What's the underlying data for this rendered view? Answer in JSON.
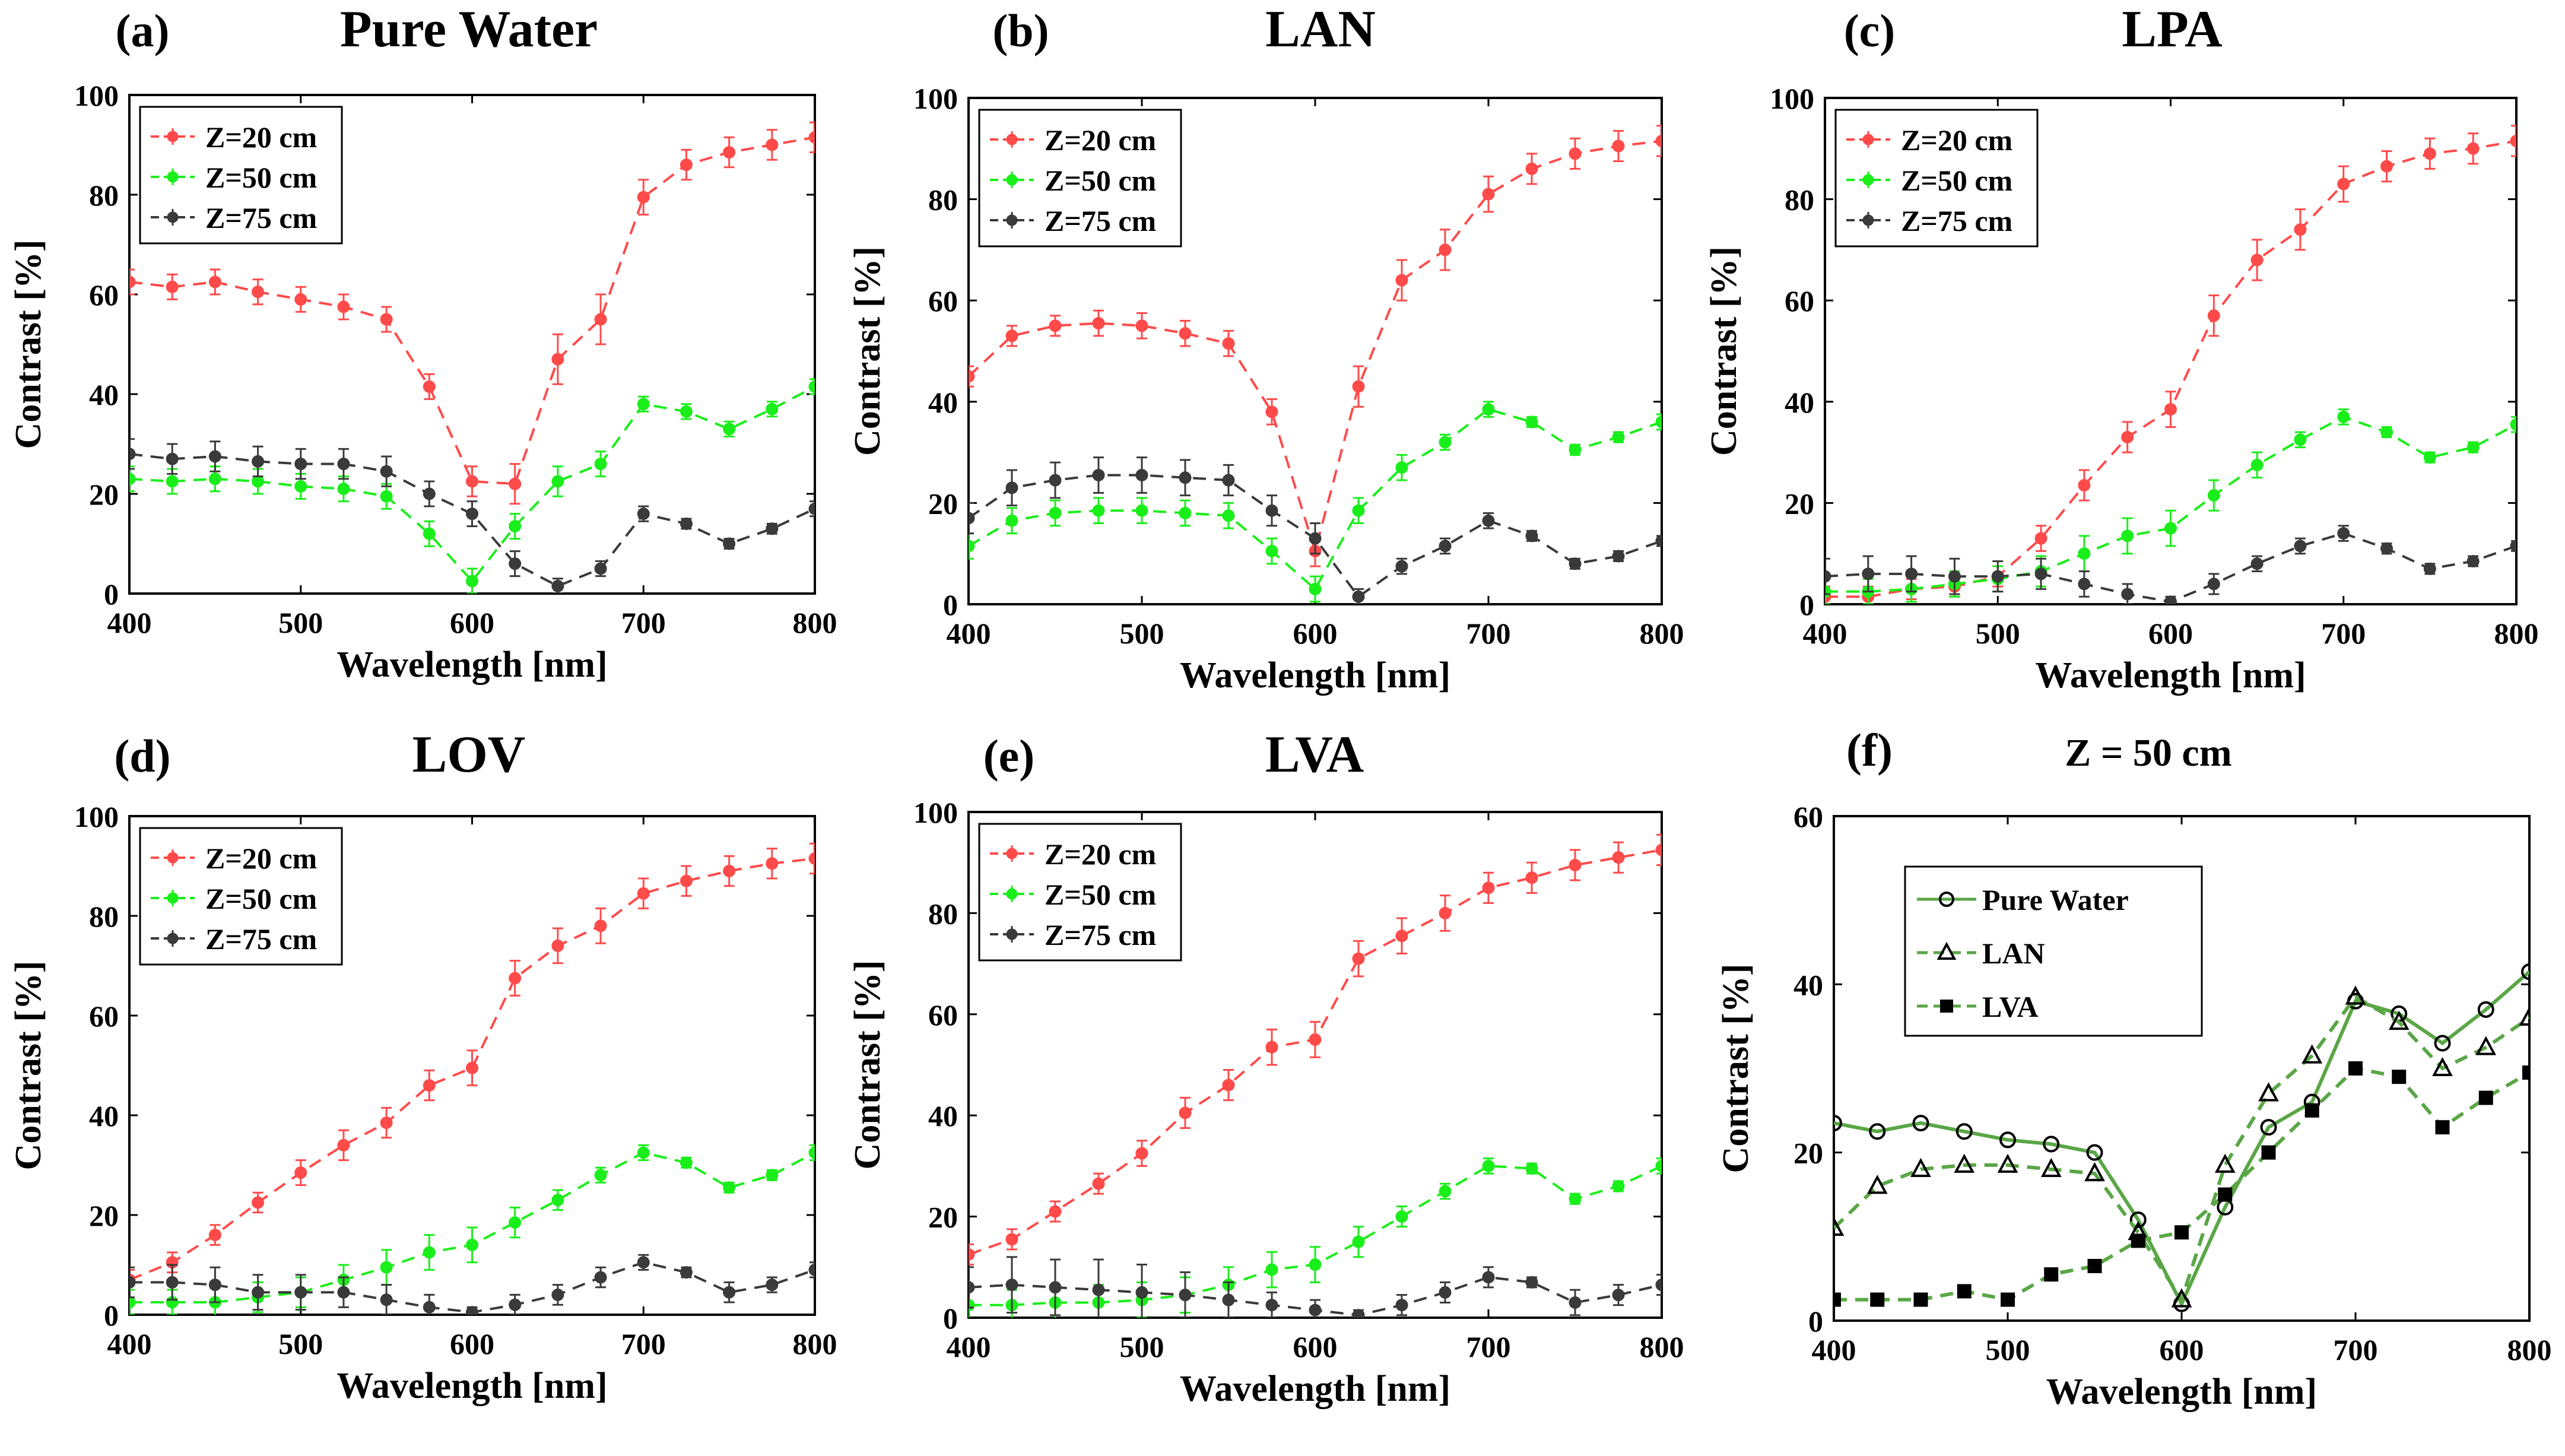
{
  "figure": {
    "name": "Contrast vs wavelength panels"
  },
  "colors": {
    "z20": "#ff4a4a",
    "z50": "#1aee1a",
    "z75": "#3a3a3a",
    "f_line": "#5aa646"
  },
  "chart_data": [
    {
      "panel": "(a)",
      "title": "Pure Water",
      "type": "line",
      "xlabel": "Wavelength [nm]",
      "ylabel": "Contrast [%]",
      "xlim": [
        400,
        800
      ],
      "ylim": [
        0,
        100
      ],
      "xticks": [
        400,
        500,
        600,
        700,
        800
      ],
      "yticks": [
        0,
        20,
        40,
        60,
        80,
        100
      ],
      "x": [
        400,
        425,
        450,
        475,
        500,
        525,
        550,
        575,
        600,
        625,
        650,
        675,
        700,
        725,
        750,
        775,
        800
      ],
      "series": [
        {
          "name": "Z=20 cm",
          "color": "#ff4a4a",
          "values": [
            62.5,
            61.5,
            62.5,
            60.5,
            59,
            57.5,
            55,
            41.5,
            22.5,
            22,
            47,
            55,
            79.5,
            86,
            88.5,
            90,
            91.5
          ],
          "errors": [
            2.5,
            2.5,
            2.5,
            2.5,
            2.5,
            2.5,
            2.5,
            2.5,
            3,
            4,
            5,
            5,
            3.5,
            3,
            3,
            3,
            3
          ]
        },
        {
          "name": "Z=50 cm",
          "color": "#1aee1a",
          "values": [
            23,
            22.5,
            23,
            22.5,
            21.5,
            21,
            19.5,
            12,
            2.5,
            13.5,
            22.5,
            26,
            38,
            36.5,
            33,
            37,
            41.5
          ],
          "errors": [
            2.5,
            2.5,
            2.5,
            2.5,
            2.5,
            2.5,
            2.5,
            2.5,
            2.5,
            2.5,
            3,
            2.5,
            1.5,
            1.5,
            1.5,
            1.5,
            1.5
          ]
        },
        {
          "name": "Z=75 cm",
          "color": "#3a3a3a",
          "values": [
            28,
            27,
            27.5,
            26.5,
            26,
            26,
            24.5,
            20,
            16,
            6,
            1.5,
            5,
            16,
            14,
            10,
            13,
            17
          ],
          "errors": [
            3,
            3,
            3,
            3,
            3,
            3,
            3,
            2.5,
            2.5,
            2.5,
            1.5,
            1.5,
            1.5,
            1,
            1,
            1,
            1.5
          ]
        }
      ],
      "legend": [
        "Z=20 cm",
        "Z=50 cm",
        "Z=75 cm"
      ],
      "legend_loc": "top-left"
    },
    {
      "panel": "(b)",
      "title": "LAN",
      "type": "line",
      "xlabel": "Wavelength [nm]",
      "ylabel": "Contrast [%]",
      "xlim": [
        400,
        800
      ],
      "ylim": [
        0,
        100
      ],
      "xticks": [
        400,
        500,
        600,
        700,
        800
      ],
      "yticks": [
        0,
        20,
        40,
        60,
        80,
        100
      ],
      "x": [
        400,
        425,
        450,
        475,
        500,
        525,
        550,
        575,
        600,
        625,
        650,
        675,
        700,
        725,
        750,
        775,
        800
      ],
      "series": [
        {
          "name": "Z=20 cm",
          "color": "#ff4a4a",
          "values": [
            45,
            53,
            55,
            55.5,
            55,
            53.5,
            51.5,
            38,
            10.5,
            43,
            64,
            70,
            81,
            86,
            89,
            90.5,
            91.5
          ],
          "errors": [
            2,
            2,
            2,
            2.5,
            2.5,
            2.5,
            2.5,
            2.5,
            3,
            4,
            4,
            4,
            3.5,
            3,
            3,
            3,
            3
          ]
        },
        {
          "name": "Z=50 cm",
          "color": "#1aee1a",
          "values": [
            11.5,
            16.5,
            18,
            18.5,
            18.5,
            18,
            17.5,
            10.5,
            3,
            18.5,
            27,
            32,
            38.5,
            36,
            30.5,
            33,
            36
          ],
          "errors": [
            2.5,
            2.5,
            2.5,
            2.5,
            2.5,
            2.5,
            2.5,
            2.5,
            2.5,
            2.5,
            2.5,
            1.5,
            1.5,
            1,
            1,
            1,
            1.5
          ]
        },
        {
          "name": "Z=75 cm",
          "color": "#3a3a3a",
          "values": [
            17,
            23,
            24.5,
            25.5,
            25.5,
            25,
            24.5,
            18.5,
            13,
            1.5,
            7.5,
            11.5,
            16.5,
            13.5,
            8,
            9.5,
            12.5
          ],
          "errors": [
            3,
            3.5,
            3.5,
            3.5,
            3.5,
            3.5,
            3,
            3,
            3,
            1.5,
            1.5,
            1.5,
            1.5,
            1,
            1,
            1,
            1
          ]
        }
      ],
      "legend": [
        "Z=20 cm",
        "Z=50 cm",
        "Z=75 cm"
      ],
      "legend_loc": "top-left"
    },
    {
      "panel": "(c)",
      "title": "LPA",
      "type": "line",
      "xlabel": "Wavelength [nm]",
      "ylabel": "Contrast [%]",
      "xlim": [
        400,
        800
      ],
      "ylim": [
        0,
        100
      ],
      "xticks": [
        400,
        500,
        600,
        700,
        800
      ],
      "yticks": [
        0,
        20,
        40,
        60,
        80,
        100
      ],
      "x": [
        400,
        425,
        450,
        475,
        500,
        525,
        550,
        575,
        600,
        625,
        650,
        675,
        700,
        725,
        750,
        775,
        800
      ],
      "series": [
        {
          "name": "Z=20 cm",
          "color": "#ff4a4a",
          "values": [
            1.5,
            1.5,
            3,
            3.5,
            5.5,
            13,
            23.5,
            33,
            38.5,
            57,
            68,
            74,
            83,
            86.5,
            89,
            90,
            91.5
          ],
          "errors": [
            2,
            2,
            2,
            2,
            2,
            2.5,
            3,
            3,
            3.5,
            4,
            4,
            4,
            3.5,
            3,
            3,
            3,
            3
          ]
        },
        {
          "name": "Z=50 cm",
          "color": "#1aee1a",
          "values": [
            2.5,
            2.5,
            3,
            4,
            5,
            6.5,
            10,
            13.5,
            15,
            21.5,
            27.5,
            32.5,
            37,
            34,
            29,
            31,
            35.5
          ],
          "errors": [
            2.5,
            2.5,
            2.5,
            2.5,
            2.5,
            3,
            3.5,
            3.5,
            3.5,
            3,
            2.5,
            1.5,
            1.5,
            1,
            1,
            1,
            1.5
          ]
        },
        {
          "name": "Z=75 cm",
          "color": "#3a3a3a",
          "values": [
            5.5,
            6,
            6,
            5.5,
            5.5,
            6,
            4,
            2,
            0.5,
            4,
            8,
            11.5,
            14,
            11,
            7,
            8.5,
            11.5
          ],
          "errors": [
            3.5,
            3.5,
            3.5,
            3.5,
            3,
            3,
            2.5,
            2,
            1,
            2,
            1.5,
            1.5,
            1.5,
            1,
            1,
            1,
            1
          ]
        }
      ],
      "legend": [
        "Z=20 cm",
        "Z=50 cm",
        "Z=75 cm"
      ],
      "legend_loc": "top-left"
    },
    {
      "panel": "(d)",
      "title": "LOV",
      "type": "line",
      "xlabel": "Wavelength [nm]",
      "ylabel": "Contrast [%]",
      "xlim": [
        400,
        800
      ],
      "ylim": [
        0,
        100
      ],
      "xticks": [
        400,
        500,
        600,
        700,
        800
      ],
      "yticks": [
        0,
        20,
        40,
        60,
        80,
        100
      ],
      "x": [
        400,
        425,
        450,
        475,
        500,
        525,
        550,
        575,
        600,
        625,
        650,
        675,
        700,
        725,
        750,
        775,
        800
      ],
      "series": [
        {
          "name": "Z=20 cm",
          "color": "#ff4a4a",
          "values": [
            7,
            10.5,
            16,
            22.5,
            28.5,
            34,
            38.5,
            46,
            49.5,
            67.5,
            74,
            78,
            84.5,
            87,
            89,
            90.5,
            91.5
          ],
          "errors": [
            2,
            2,
            2,
            2,
            2.5,
            3,
            3,
            3,
            3.5,
            3.5,
            3.5,
            3.5,
            3,
            3,
            3,
            3,
            3
          ]
        },
        {
          "name": "Z=50 cm",
          "color": "#1aee1a",
          "values": [
            2.5,
            2.5,
            2.5,
            3.5,
            4.5,
            7,
            9.5,
            12.5,
            14,
            18.5,
            23,
            28,
            32.5,
            30.5,
            25.5,
            28,
            32.5
          ],
          "errors": [
            2.5,
            2.5,
            3,
            3,
            3,
            3,
            3.5,
            3.5,
            3.5,
            3,
            2,
            1.5,
            1.5,
            1,
            1,
            1,
            1.5
          ]
        },
        {
          "name": "Z=75 cm",
          "color": "#3a3a3a",
          "values": [
            6.5,
            6.5,
            6,
            4.5,
            4.5,
            4.5,
            3,
            1.5,
            0.5,
            2,
            4,
            7.5,
            10.5,
            8.5,
            4.5,
            6,
            9
          ],
          "errors": [
            3,
            3.5,
            3.5,
            3.5,
            3.5,
            3,
            3,
            2.5,
            1,
            2,
            2,
            2,
            1.5,
            1,
            2,
            1.5,
            1.5
          ]
        }
      ],
      "legend": [
        "Z=20 cm",
        "Z=50 cm",
        "Z=75 cm"
      ],
      "legend_loc": "top-left"
    },
    {
      "panel": "(e)",
      "title": "LVA",
      "type": "line",
      "xlabel": "Wavelength [nm]",
      "ylabel": "Contrast [%]",
      "xlim": [
        400,
        800
      ],
      "ylim": [
        0,
        100
      ],
      "xticks": [
        400,
        500,
        600,
        700,
        800
      ],
      "yticks": [
        0,
        20,
        40,
        60,
        80,
        100
      ],
      "x": [
        400,
        425,
        450,
        475,
        500,
        525,
        550,
        575,
        600,
        625,
        650,
        675,
        700,
        725,
        750,
        775,
        800
      ],
      "series": [
        {
          "name": "Z=20 cm",
          "color": "#ff4a4a",
          "values": [
            12.5,
            15.5,
            21,
            26.5,
            32.5,
            40.5,
            46,
            53.5,
            55,
            71,
            75.5,
            80,
            85,
            87,
            89.5,
            91,
            92.5
          ],
          "errors": [
            2,
            2,
            2,
            2,
            2.5,
            3,
            3,
            3.5,
            3.5,
            3.5,
            3.5,
            3.5,
            3,
            3,
            3,
            3,
            3
          ]
        },
        {
          "name": "Z=50 cm",
          "color": "#1aee1a",
          "values": [
            2.5,
            2.5,
            3,
            3,
            3.5,
            4.5,
            6.5,
            9.5,
            10.5,
            15,
            20,
            25,
            30,
            29.5,
            23.5,
            26,
            30
          ],
          "errors": [
            3,
            3,
            3.5,
            3.5,
            3.5,
            3.5,
            3.5,
            3.5,
            3.5,
            3,
            2,
            1.5,
            1.5,
            1,
            1,
            1,
            1.5
          ]
        },
        {
          "name": "Z=75 cm",
          "color": "#3a3a3a",
          "values": [
            6,
            6.5,
            6,
            5.5,
            5,
            4.5,
            3.5,
            2.5,
            1.5,
            0.5,
            2.5,
            5,
            8,
            7,
            3,
            4.5,
            6.5
          ],
          "errors": [
            4,
            5.5,
            5.5,
            6,
            5.5,
            4.5,
            3.5,
            2.5,
            2,
            1,
            2,
            2,
            2,
            1,
            2.5,
            2,
            2
          ]
        }
      ],
      "legend": [
        "Z=20 cm",
        "Z=50 cm",
        "Z=75 cm"
      ],
      "legend_loc": "top-left"
    },
    {
      "panel": "(f)",
      "title": "Z = 50 cm",
      "type": "line",
      "xlabel": "Wavelength [nm]",
      "ylabel": "Contrast [%]",
      "xlim": [
        400,
        800
      ],
      "ylim": [
        0,
        60
      ],
      "xticks": [
        400,
        500,
        600,
        700,
        800
      ],
      "yticks": [
        0,
        20,
        40,
        60
      ],
      "x": [
        400,
        425,
        450,
        475,
        500,
        525,
        550,
        575,
        600,
        625,
        650,
        675,
        700,
        725,
        750,
        775,
        800
      ],
      "series": [
        {
          "name": "Pure Water",
          "marker": "circle",
          "dash": "solid",
          "color": "#5aa646",
          "values": [
            23.5,
            22.5,
            23.5,
            22.5,
            21.5,
            21,
            20,
            12,
            2,
            13.5,
            23,
            26,
            38,
            36.5,
            33,
            37,
            41.5
          ]
        },
        {
          "name": "LAN",
          "marker": "triangle",
          "dash": "dashed",
          "color": "#5aa646",
          "values": [
            11,
            16,
            18,
            18.5,
            18.5,
            18,
            17.5,
            10.5,
            2.5,
            18.5,
            27,
            31.5,
            38.5,
            35.5,
            30,
            32.5,
            36
          ]
        },
        {
          "name": "LVA",
          "marker": "square",
          "dash": "dashed",
          "color": "#5aa646",
          "values": [
            2.5,
            2.5,
            2.5,
            3.5,
            2.5,
            5.5,
            6.5,
            9.5,
            10.5,
            15,
            20,
            25,
            30,
            29,
            23,
            26.5,
            29.5
          ]
        }
      ],
      "legend": [
        "Pure Water",
        "LAN",
        "LVA"
      ],
      "legend_loc": "top-left"
    }
  ]
}
